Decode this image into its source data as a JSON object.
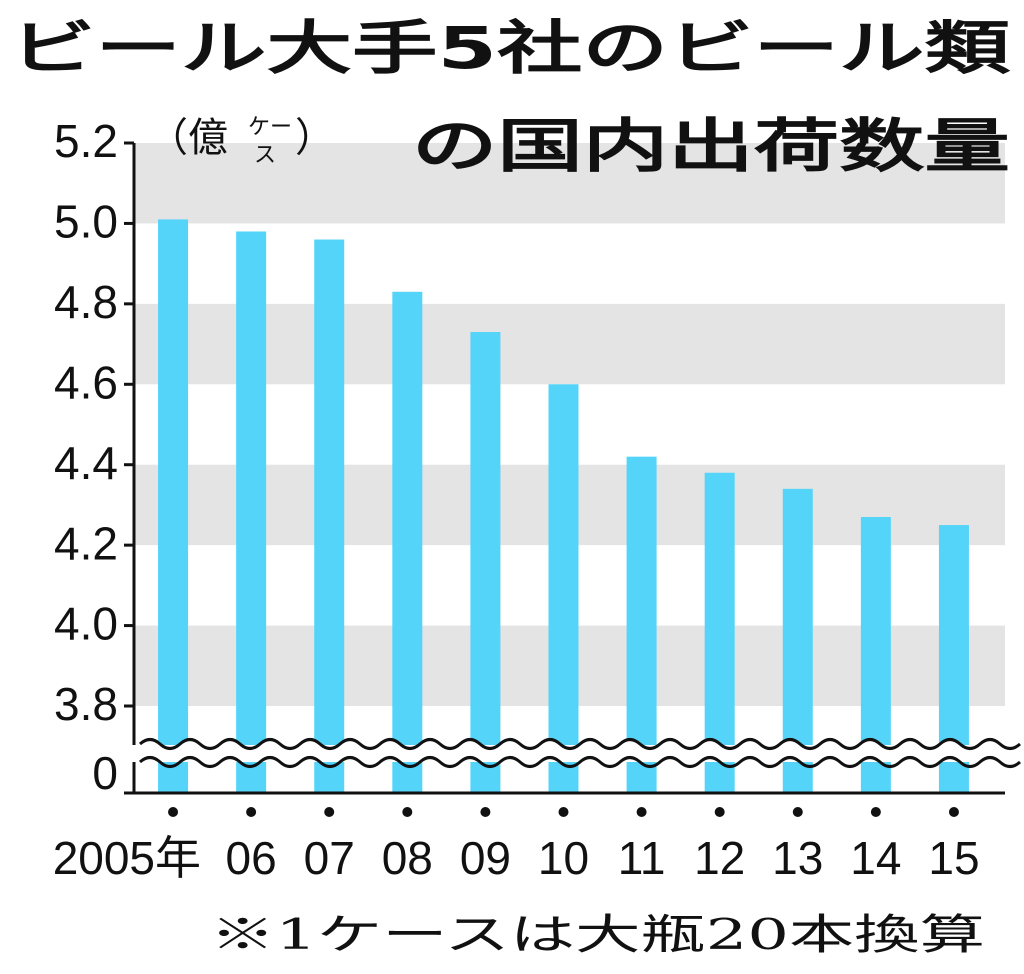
{
  "chart_data": {
    "type": "bar",
    "title_lines": [
      "ビール大手5社のビール類",
      "の国内出荷数量"
    ],
    "y_label_parts": [
      "（億",
      "ケー",
      "ス",
      "）"
    ],
    "note": "※1ケースは大瓶20本換算",
    "categories": [
      "2005年",
      "06",
      "07",
      "08",
      "09",
      "10",
      "11",
      "12",
      "13",
      "14",
      "15"
    ],
    "values": [
      5.01,
      4.98,
      4.96,
      4.83,
      4.73,
      4.6,
      4.42,
      4.38,
      4.34,
      4.27,
      4.25
    ],
    "color": "#55d4f9",
    "ylim": [
      3.8,
      5.2
    ],
    "yticks": [
      5.2,
      {
        "value": 5.0,
        "label": "5.0"
      },
      4.8,
      4.6,
      4.4,
      4.2,
      {
        "value": 4.0,
        "label": "4.0"
      },
      3.8
    ],
    "axis_break": true,
    "baseline_tick": 0,
    "band_color": "#e4e4e4"
  }
}
